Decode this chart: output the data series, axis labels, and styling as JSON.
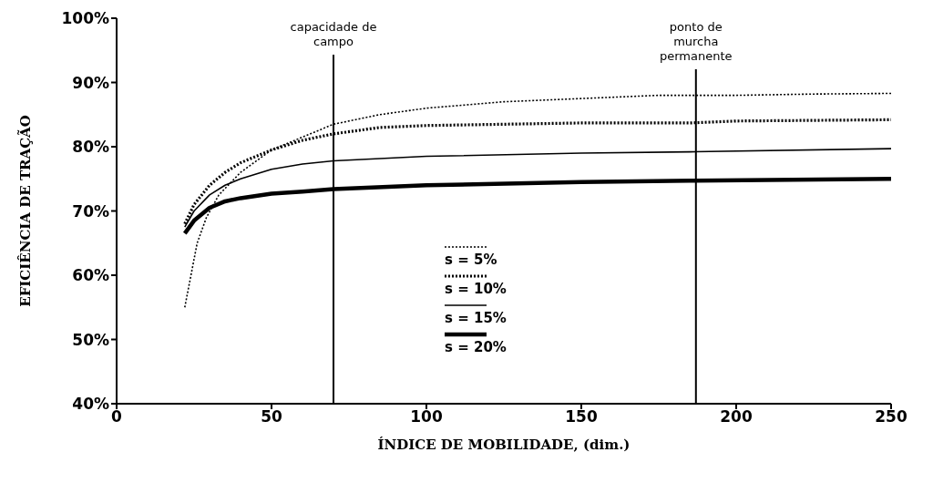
{
  "chart_data": {
    "type": "line",
    "xlabel": "ÍNDICE DE MOBILIDADE, (dim.)",
    "ylabel": "EFICIÊNCIA DE TRAÇÃO",
    "xlim": [
      0,
      250
    ],
    "xticks": [
      0,
      50,
      100,
      150,
      200,
      250
    ],
    "ylim": [
      40,
      100
    ],
    "yticks": [
      {
        "value": 40,
        "label": "40%"
      },
      {
        "value": 50,
        "label": "50%"
      },
      {
        "value": 60,
        "label": "60%"
      },
      {
        "value": 70,
        "label": "70%"
      },
      {
        "value": 80,
        "label": "80%"
      },
      {
        "value": 90,
        "label": "90%"
      },
      {
        "value": 100,
        "label": "100%"
      }
    ],
    "legend": "center",
    "marker": "none",
    "series": [
      {
        "name": "s = 5%",
        "color": "#000000",
        "line_style": "dotted",
        "x": [
          22,
          24,
          26,
          29,
          33,
          40,
          50,
          60,
          70,
          85,
          100,
          125,
          150,
          175,
          200,
          225,
          250
        ],
        "values": [
          55,
          60,
          65,
          69,
          72.5,
          76,
          79.5,
          81.5,
          83.5,
          85,
          86,
          87,
          87.5,
          88,
          88,
          88.2,
          88.3
        ]
      },
      {
        "name": "s = 10%",
        "color": "#000000",
        "line_style": "dotted",
        "x": [
          22,
          25,
          30,
          35,
          40,
          50,
          60,
          70,
          85,
          100,
          125,
          150,
          185,
          200,
          250
        ],
        "values": [
          68,
          71,
          74,
          76,
          77.5,
          79.5,
          81,
          82,
          83,
          83.3,
          83.5,
          83.7,
          83.7,
          84,
          84.2
        ]
      },
      {
        "name": "s = 15%",
        "color": "#000000",
        "line_style": "solid",
        "x": [
          22,
          25,
          30,
          35,
          40,
          50,
          60,
          70,
          100,
          150,
          185,
          250
        ],
        "values": [
          67.5,
          70,
          72.5,
          74,
          75,
          76.5,
          77.3,
          77.8,
          78.5,
          79,
          79.2,
          79.7
        ]
      },
      {
        "name": "s = 20%",
        "color": "#000000",
        "line_style": "solid",
        "x": [
          22,
          25,
          30,
          35,
          40,
          50,
          60,
          70,
          100,
          150,
          185,
          250
        ],
        "values": [
          66.5,
          68.5,
          70.5,
          71.5,
          72,
          72.7,
          73,
          73.4,
          74,
          74.5,
          74.7,
          75
        ]
      }
    ],
    "ref_lines": [
      {
        "axis": "x",
        "value": 70,
        "label": "capacidade de campo"
      },
      {
        "axis": "x",
        "value": 187,
        "label": "ponto de murcha permanente"
      }
    ]
  }
}
